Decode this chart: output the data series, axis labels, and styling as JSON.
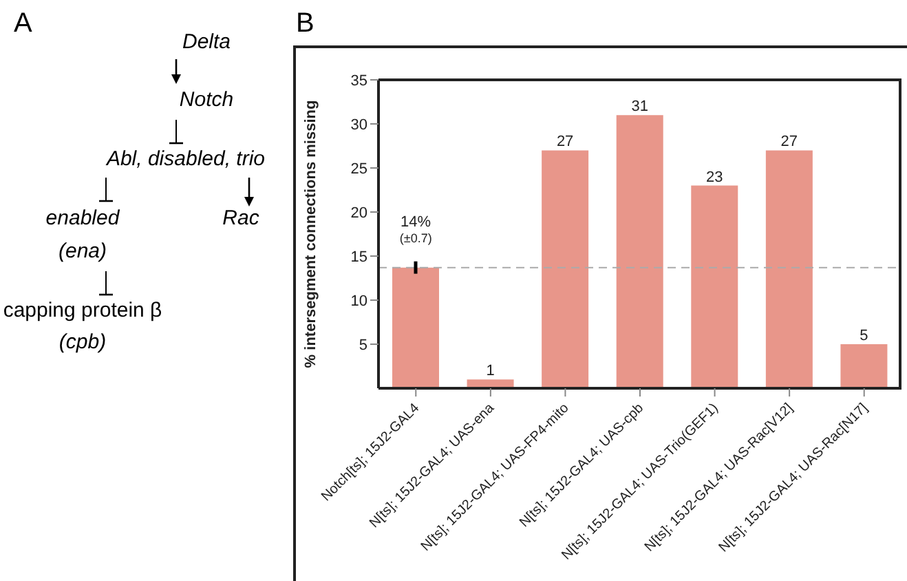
{
  "chart_data": [
    {
      "type": "other",
      "title": "A",
      "annotations": [
        "Delta",
        "Notch",
        "Abl, disabled, trio",
        "enabled",
        "(ena)",
        "Rac",
        "capping protein β",
        "(cpb)"
      ]
    },
    {
      "type": "bar",
      "title": "B",
      "ylabel": "% intersegment connections missing",
      "categories": [
        "Notch[ts]; 15J2-GAL4",
        "N[ts]; 15J2-GAL4; UAS-ena",
        "N[ts]; 15J2-GAL4; UAS-FP4-mito",
        "N[ts]; 15J2-GAL4; UAS-cpb",
        "N[ts]; 15J2-GAL4; UAS-Trio(GEF1)",
        "N[ts]; 15J2-GAL4; UAS-Rac[V12]",
        "N[ts]; 15J2-GAL4; UAS-Rac[N17]"
      ],
      "values": [
        13.7,
        1,
        27,
        31,
        23,
        27,
        5
      ],
      "errors": [
        0.7,
        null,
        null,
        null,
        null,
        null,
        null
      ],
      "value_labels": [
        "14%",
        "1",
        "27",
        "31",
        "23",
        "27",
        "5"
      ],
      "color": "#e8968a",
      "ylim": [
        0,
        35
      ],
      "yticks": [
        5,
        10,
        15,
        20,
        25,
        30,
        35
      ],
      "ref_lines": [
        {
          "axis": "y",
          "value": 13.7,
          "color": "#aaaaaa",
          "line_style": "dashed"
        }
      ],
      "annotations": [
        {
          "text": "(±0.7)",
          "x": "Notch[ts]; 15J2-GAL4",
          "y": 13.7
        }
      ],
      "grid": false
    }
  ]
}
